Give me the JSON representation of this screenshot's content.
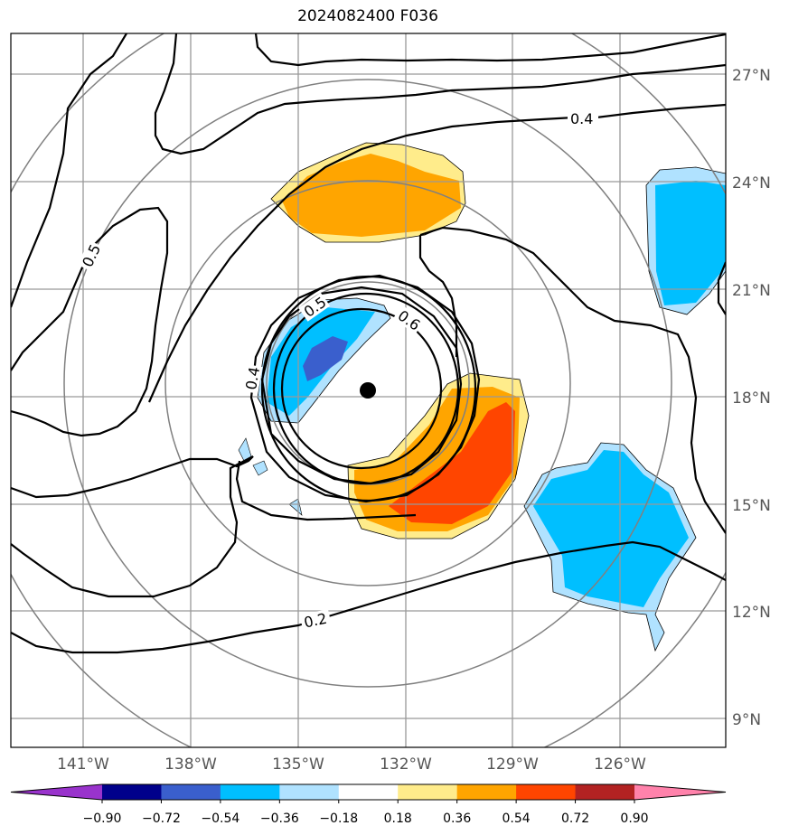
{
  "title": "2024082400 F036",
  "lat_labels": [
    "27°N",
    "24°N",
    "21°N",
    "18°N",
    "15°N",
    "12°N",
    "9°N"
  ],
  "lon_labels": [
    "141°W",
    "138°W",
    "135°W",
    "132°W",
    "129°W",
    "126°W"
  ],
  "contour_labels": [
    "0.4",
    "0.5",
    "0.5",
    "0.6",
    "0.4",
    "0.2"
  ],
  "colorbar": {
    "ticks": [
      "−0.90",
      "−0.72",
      "−0.54",
      "−0.36",
      "−0.18",
      "0.18",
      "0.36",
      "0.54",
      "0.72",
      "0.90"
    ],
    "colors": [
      "#9933cc",
      "#00008b",
      "#3a5fcd",
      "#00bfff",
      "#b0e2ff",
      "#ffffff",
      "#ffec8b",
      "#ffa500",
      "#ff4500",
      "#b22222",
      "#ff82ab"
    ]
  },
  "storm_center": {
    "lat": "18°N",
    "lon": "133°W"
  }
}
